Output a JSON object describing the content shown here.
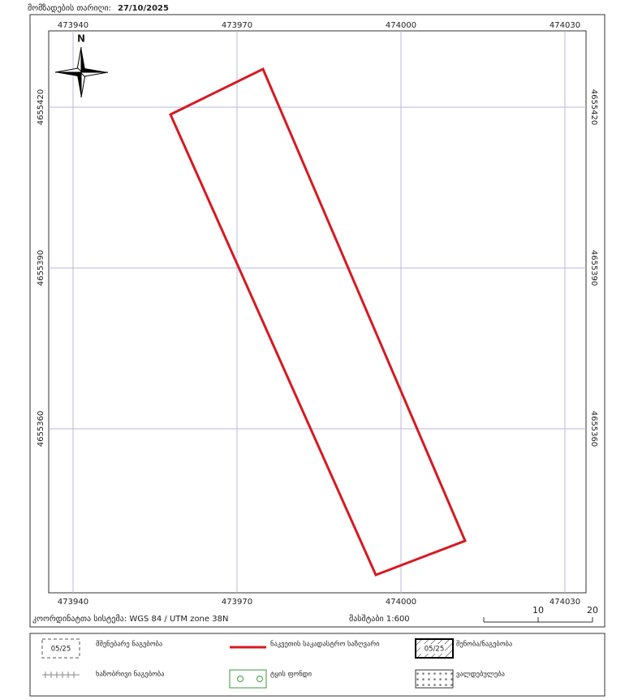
{
  "header": {
    "label": "მომზადების თარიღი:",
    "date": "27/10/2025"
  },
  "map": {
    "grid": {
      "eastings": [
        473940,
        473970,
        474000,
        474030
      ],
      "northings": [
        4655420,
        4655390,
        4655360
      ]
    },
    "north": "N",
    "crs": "კოორდინატთა სისტემა: WGS 84 / UTM zone 38N",
    "scale": "მასშტაბი 1:600",
    "scalebar": [
      10,
      20
    ]
  },
  "legend": [
    {
      "label": "მშენებარე ნაგებობა",
      "sample": "05/25"
    },
    {
      "label": "ნაკვეთის საკადასტრო საზღვარი"
    },
    {
      "label": "შენობა/ნაგებობა",
      "sample": "05/25"
    },
    {
      "label": "ხაზობრივი ნაგებობა"
    },
    {
      "label": "ტყის ფონდი"
    },
    {
      "label": "ვალდებულება"
    }
  ]
}
